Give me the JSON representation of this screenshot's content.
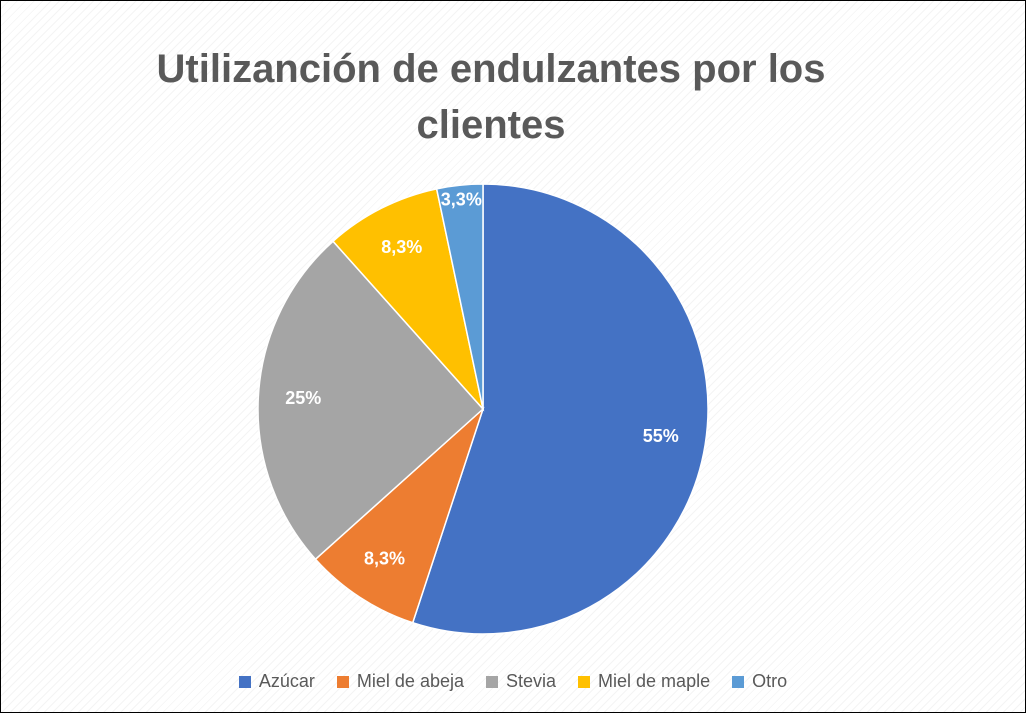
{
  "chart_data": {
    "type": "pie",
    "title": "Utilizanción de endulzantes por los clientes",
    "categories": [
      "Azúcar",
      "Miel de abeja",
      "Stevia",
      "Miel de maple",
      "Otro"
    ],
    "values": [
      55,
      8.3,
      25,
      8.3,
      3.3
    ],
    "value_labels": [
      "55%",
      "8,3%",
      "25%",
      "8,3%",
      "3,3%"
    ],
    "colors": [
      "#4472c4",
      "#ed7d31",
      "#a5a5a5",
      "#ffc000",
      "#5b9bd5"
    ],
    "legend": "bottom"
  }
}
